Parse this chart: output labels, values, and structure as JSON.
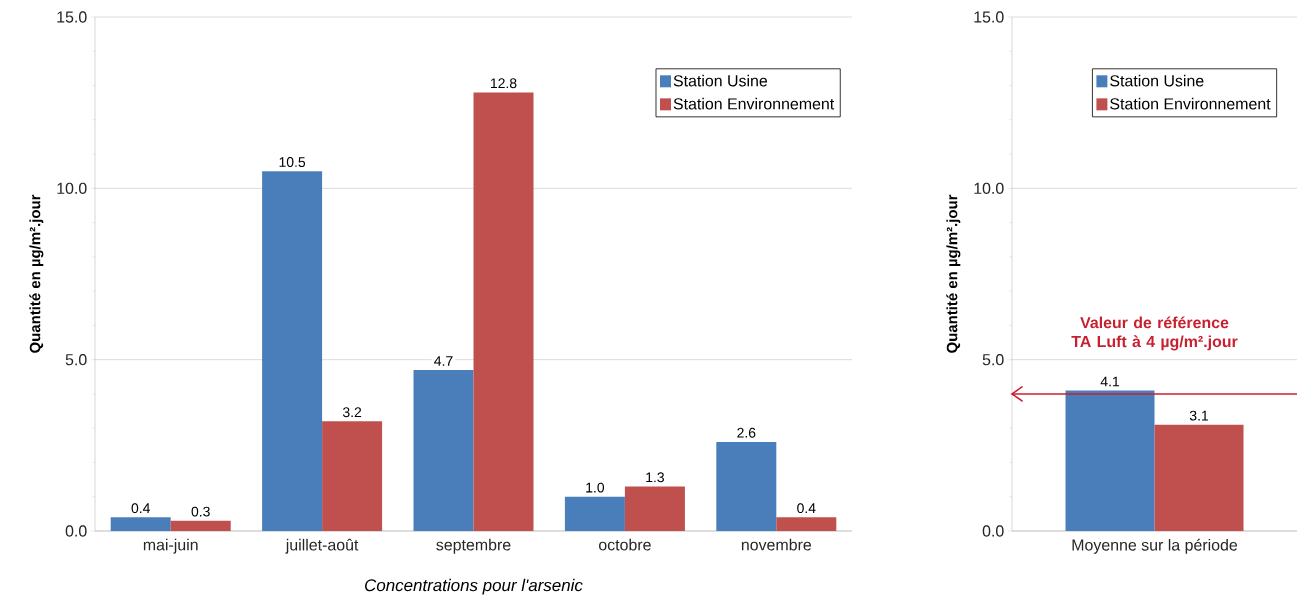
{
  "chart_data": [
    {
      "type": "bar",
      "categories": [
        "mai-juin",
        "juillet-août",
        "septembre",
        "octobre",
        "novembre"
      ],
      "series": [
        {
          "name": "Station Usine",
          "color": "#4a7ebb",
          "values": [
            0.4,
            10.5,
            4.7,
            1.0,
            2.6
          ],
          "value_labels": [
            "0.4",
            "10.5",
            "4.7",
            "1.0",
            "2.6"
          ]
        },
        {
          "name": "Station Environnement",
          "color": "#c0504d",
          "values": [
            0.3,
            3.2,
            12.8,
            1.3,
            0.4
          ],
          "value_labels": [
            "0.3",
            "3.2",
            "12.8",
            "1.3",
            "0.4"
          ]
        }
      ],
      "ylim": [
        0,
        15
      ],
      "yticks": [
        {
          "value": 0,
          "label": "0.0"
        },
        {
          "value": 5,
          "label": "5.0"
        },
        {
          "value": 10,
          "label": "10.0"
        },
        {
          "value": 15,
          "label": "15.0"
        }
      ],
      "ylabel": "Quantité en µg/m².jour",
      "xlabel": "*Concentrations pour l'arsenic*",
      "grid": "y",
      "legend": "top right"
    },
    {
      "type": "bar",
      "categories": [
        "Moyenne sur la période"
      ],
      "series": [
        {
          "name": "Station Usine",
          "color": "#4a7ebb",
          "values": [
            4.1
          ],
          "value_labels": [
            "4.1"
          ]
        },
        {
          "name": "Station Environnement",
          "color": "#c0504d",
          "values": [
            3.1
          ],
          "value_labels": [
            "3.1"
          ]
        }
      ],
      "ylim": [
        0,
        15
      ],
      "yticks": [
        {
          "value": 0,
          "label": "0.0"
        },
        {
          "value": 5,
          "label": "5.0"
        },
        {
          "value": 10,
          "label": "10.0"
        },
        {
          "value": 15,
          "label": "15.0"
        }
      ],
      "ylabel": "Quantité en µg/m².jour",
      "ref_lines": [
        {
          "axis": "y",
          "value": 4,
          "label": "Valeur de référence TA Luft à 4 µg/m².jour",
          "color": "#c8202f"
        }
      ],
      "grid": "y",
      "legend": "top right"
    }
  ]
}
